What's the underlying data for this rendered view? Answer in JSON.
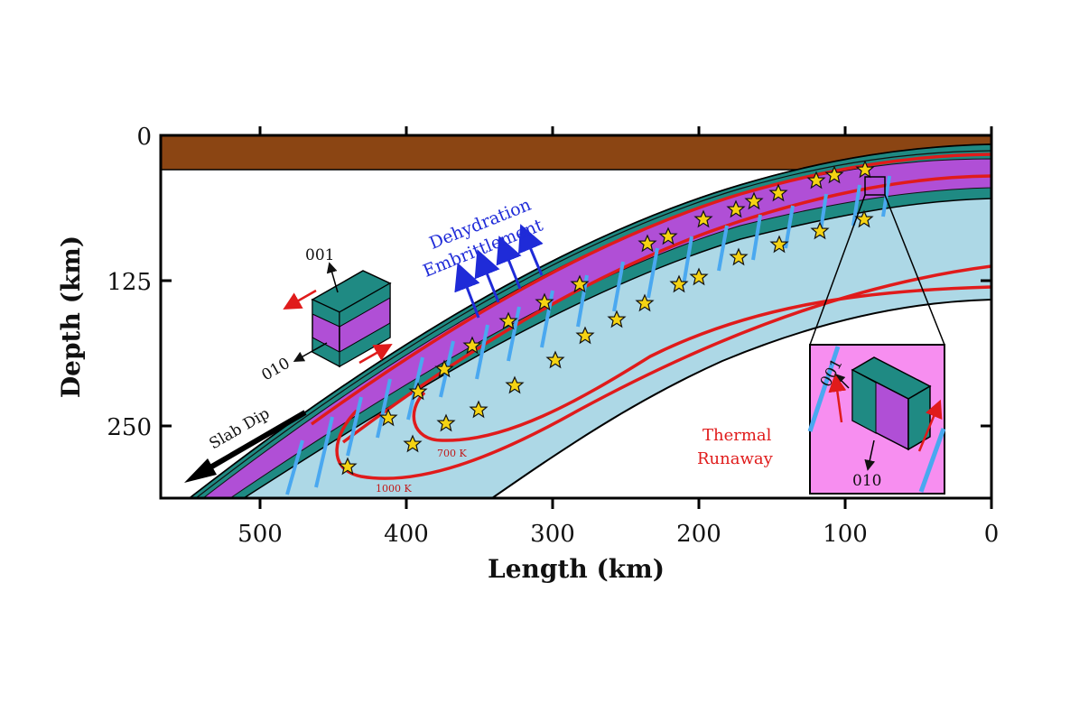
{
  "axes": {
    "x_title": "Length (km)",
    "y_title": "Depth (km)",
    "x_ticks": [
      "500",
      "400",
      "300",
      "200",
      "100",
      "0"
    ],
    "y_ticks": [
      "0",
      "125",
      "250"
    ]
  },
  "labels": {
    "dehydration_line1": "Dehydration",
    "dehydration_line2": "Embrittlement",
    "thermal_line1": "Thermal",
    "thermal_line2": "Runaway",
    "slab_dip": "Slab Dip",
    "isotherm_700": "700 K",
    "isotherm_1000": "1000 K",
    "crystal_001": "001",
    "crystal_010": "010",
    "inset_001": "001",
    "inset_010": "010"
  },
  "colors": {
    "lithosphere": "#8b4513",
    "mantle": "#add8e6",
    "slab_layer_purple": "#b04fd6",
    "slab_layer_teal": "#1f8a83",
    "isotherm": "#e01b1b",
    "star": "#f5d313",
    "fault": "#4aa8f0",
    "inset_bg": "#f78ef0"
  }
}
